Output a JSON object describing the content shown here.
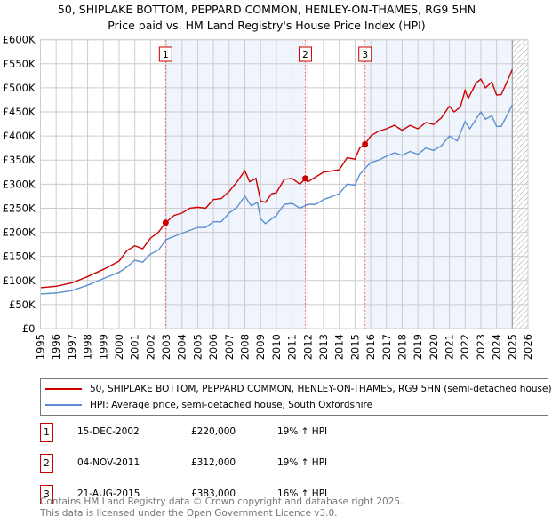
{
  "chart_data": {
    "type": "line",
    "title": "50, SHIPLAKE BOTTOM, PEPPARD COMMON, HENLEY-ON-THAMES, RG9 5HN",
    "subtitle": "Price paid vs. HM Land Registry's House Price Index (HPI)",
    "xlim": [
      1995,
      2026
    ],
    "ylim": [
      0,
      600000
    ],
    "x_ticks": [
      "1995",
      "1996",
      "1997",
      "1998",
      "1999",
      "2000",
      "2001",
      "2002",
      "2003",
      "2004",
      "2005",
      "2006",
      "2007",
      "2008",
      "2009",
      "2010",
      "2011",
      "2012",
      "2013",
      "2014",
      "2015",
      "2016",
      "2017",
      "2018",
      "2019",
      "2020",
      "2021",
      "2022",
      "2023",
      "2024",
      "2025",
      "2026"
    ],
    "y_ticks": [
      {
        "v": 0,
        "l": "£0"
      },
      {
        "v": 50000,
        "l": "£50K"
      },
      {
        "v": 100000,
        "l": "£100K"
      },
      {
        "v": 150000,
        "l": "£150K"
      },
      {
        "v": 200000,
        "l": "£200K"
      },
      {
        "v": 250000,
        "l": "£250K"
      },
      {
        "v": 300000,
        "l": "£300K"
      },
      {
        "v": 350000,
        "l": "£350K"
      },
      {
        "v": 400000,
        "l": "£400K"
      },
      {
        "v": 450000,
        "l": "£450K"
      },
      {
        "v": 500000,
        "l": "£500K"
      },
      {
        "v": 550000,
        "l": "£550K"
      },
      {
        "v": 600000,
        "l": "£600K"
      }
    ],
    "grid": true,
    "series": [
      {
        "name": "50, SHIPLAKE BOTTOM, PEPPARD COMMON, HENLEY-ON-THAMES, RG9 5HN (semi-detached house)",
        "color": "#cc0000",
        "points": [
          [
            1995,
            85
          ],
          [
            1996,
            88
          ],
          [
            1997,
            95
          ],
          [
            1998,
            108
          ],
          [
            1999,
            123
          ],
          [
            2000,
            140
          ],
          [
            2000.5,
            162
          ],
          [
            2001,
            172
          ],
          [
            2001.5,
            166
          ],
          [
            2002,
            188
          ],
          [
            2002.5,
            200
          ],
          [
            2002.96,
            220
          ],
          [
            2003.5,
            235
          ],
          [
            2004,
            240
          ],
          [
            2004.5,
            250
          ],
          [
            2005,
            252
          ],
          [
            2005.5,
            250
          ],
          [
            2006,
            268
          ],
          [
            2006.5,
            270
          ],
          [
            2007,
            285
          ],
          [
            2007.5,
            305
          ],
          [
            2008,
            328
          ],
          [
            2008.3,
            305
          ],
          [
            2008.7,
            312
          ],
          [
            2009,
            265
          ],
          [
            2009.3,
            262
          ],
          [
            2009.7,
            280
          ],
          [
            2010,
            282
          ],
          [
            2010.5,
            310
          ],
          [
            2011,
            312
          ],
          [
            2011.5,
            300
          ],
          [
            2011.84,
            312
          ],
          [
            2012,
            305
          ],
          [
            2012.5,
            315
          ],
          [
            2013,
            325
          ],
          [
            2014,
            330
          ],
          [
            2014.5,
            355
          ],
          [
            2015,
            352
          ],
          [
            2015.3,
            375
          ],
          [
            2015.64,
            383
          ],
          [
            2016,
            400
          ],
          [
            2016.5,
            410
          ],
          [
            2017,
            415
          ],
          [
            2017.5,
            422
          ],
          [
            2018,
            412
          ],
          [
            2018.5,
            422
          ],
          [
            2019,
            415
          ],
          [
            2019.5,
            428
          ],
          [
            2020,
            424
          ],
          [
            2020.5,
            438
          ],
          [
            2021,
            462
          ],
          [
            2021.3,
            450
          ],
          [
            2021.7,
            460
          ],
          [
            2022,
            495
          ],
          [
            2022.2,
            478
          ],
          [
            2022.7,
            510
          ],
          [
            2023,
            518
          ],
          [
            2023.3,
            500
          ],
          [
            2023.7,
            512
          ],
          [
            2024,
            485
          ],
          [
            2024.3,
            486
          ],
          [
            2024.7,
            515
          ],
          [
            2025,
            538
          ]
        ]
      },
      {
        "name": "HPI: Average price, semi-detached house, South Oxfordshire",
        "color": "#5b8fd0",
        "points": [
          [
            1995,
            72
          ],
          [
            1996,
            74
          ],
          [
            1997,
            79
          ],
          [
            1998,
            90
          ],
          [
            1999,
            104
          ],
          [
            2000,
            117
          ],
          [
            2000.5,
            128
          ],
          [
            2001,
            142
          ],
          [
            2001.5,
            138
          ],
          [
            2002,
            155
          ],
          [
            2002.5,
            163
          ],
          [
            2003,
            185
          ],
          [
            2004,
            198
          ],
          [
            2005,
            210
          ],
          [
            2005.5,
            210
          ],
          [
            2006,
            222
          ],
          [
            2006.5,
            222
          ],
          [
            2007,
            240
          ],
          [
            2007.5,
            252
          ],
          [
            2008,
            275
          ],
          [
            2008.4,
            255
          ],
          [
            2008.8,
            262
          ],
          [
            2009,
            228
          ],
          [
            2009.3,
            218
          ],
          [
            2010,
            235
          ],
          [
            2010.5,
            258
          ],
          [
            2011,
            260
          ],
          [
            2011.5,
            250
          ],
          [
            2012,
            258
          ],
          [
            2012.5,
            258
          ],
          [
            2013,
            268
          ],
          [
            2014,
            280
          ],
          [
            2014.5,
            300
          ],
          [
            2015,
            298
          ],
          [
            2015.3,
            320
          ],
          [
            2015.7,
            335
          ],
          [
            2016,
            345
          ],
          [
            2016.5,
            350
          ],
          [
            2017,
            358
          ],
          [
            2017.5,
            365
          ],
          [
            2018,
            360
          ],
          [
            2018.5,
            368
          ],
          [
            2019,
            362
          ],
          [
            2019.5,
            375
          ],
          [
            2020,
            370
          ],
          [
            2020.5,
            380
          ],
          [
            2021,
            400
          ],
          [
            2021.5,
            390
          ],
          [
            2022,
            430
          ],
          [
            2022.3,
            415
          ],
          [
            2023,
            450
          ],
          [
            2023.3,
            435
          ],
          [
            2023.7,
            442
          ],
          [
            2024,
            420
          ],
          [
            2024.3,
            420
          ],
          [
            2024.7,
            445
          ],
          [
            2025,
            465
          ]
        ]
      }
    ],
    "sales": [
      {
        "n": "1",
        "x": 2002.96,
        "y": 220,
        "date": "15-DEC-2002",
        "price": "£220,000",
        "hpi": "19% ↑ HPI"
      },
      {
        "n": "2",
        "x": 2011.84,
        "y": 312,
        "date": "04-NOV-2011",
        "price": "£312,000",
        "hpi": "19% ↑ HPI"
      },
      {
        "n": "3",
        "x": 2015.64,
        "y": 383,
        "date": "21-AUG-2015",
        "price": "£383,000",
        "hpi": "16% ↑ HPI"
      }
    ],
    "legend_placement": "below"
  },
  "legend": {
    "red": "50, SHIPLAKE BOTTOM, PEPPARD COMMON, HENLEY-ON-THAMES, RG9 5HN (semi-detached house)",
    "blue": "HPI: Average price, semi-detached house, South Oxfordshire"
  },
  "footer": {
    "line1": "Contains HM Land Registry data © Crown copyright and database right 2025.",
    "line2": "This data is licensed under the Open Government Licence v3.0."
  }
}
